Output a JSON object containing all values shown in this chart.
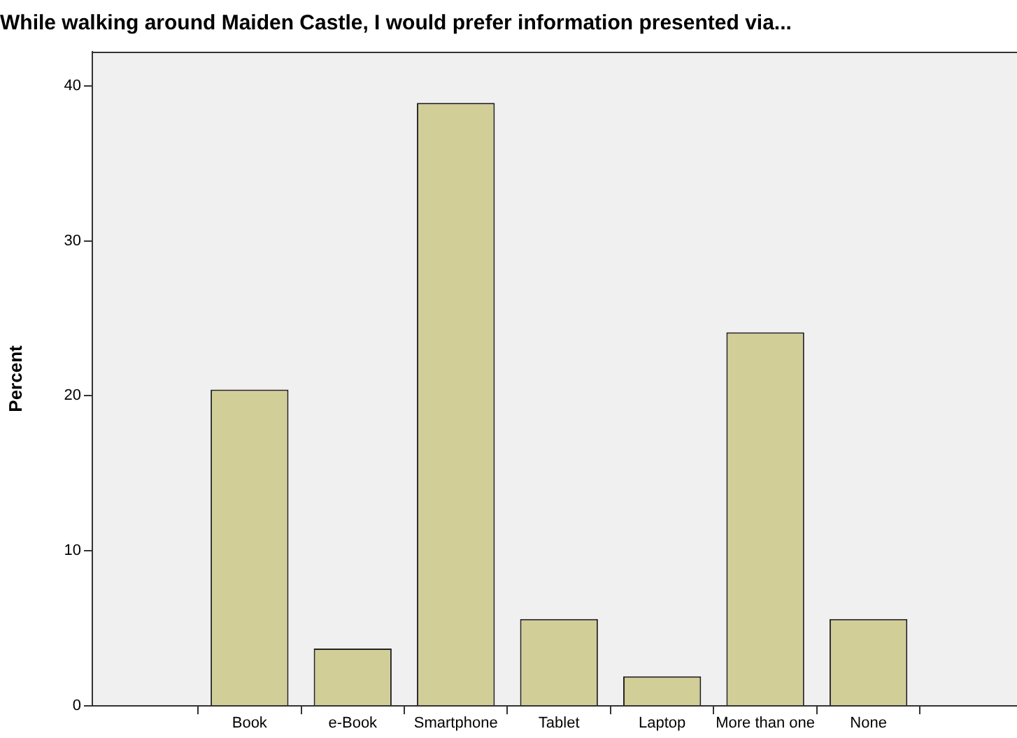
{
  "chart_data": {
    "type": "bar",
    "title": "While walking around Maiden Castle, I would prefer information presented via...",
    "ylabel": "Percent",
    "categories": [
      "Book",
      "e-Book",
      "Smartphone",
      "Tablet",
      "Laptop",
      "More than one",
      "None"
    ],
    "values": [
      20.4,
      3.7,
      38.9,
      5.6,
      1.9,
      24.1,
      5.6
    ],
    "color": "#d2ce98",
    "ylim": [
      0,
      42.2
    ],
    "yticks": [
      0,
      10,
      20,
      30,
      40
    ],
    "grid": false,
    "legend": false
  }
}
